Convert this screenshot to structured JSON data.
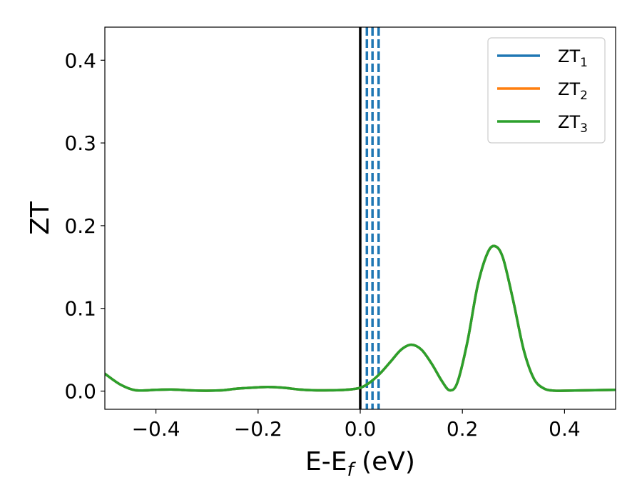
{
  "chart_data": {
    "type": "line",
    "title": "",
    "xlabel": "E-E",
    "xlabel_subscript": "f",
    "xlabel_unit": " (eV)",
    "ylabel": "ZT",
    "xlim": [
      -0.5,
      0.5
    ],
    "ylim": [
      -0.022,
      0.44
    ],
    "x_ticks": [
      -0.4,
      -0.2,
      0.0,
      0.2,
      0.4
    ],
    "x_tick_labels": [
      "−0.4",
      "−0.2",
      "0.0",
      "0.2",
      "0.4"
    ],
    "y_ticks": [
      0.0,
      0.1,
      0.2,
      0.3,
      0.4
    ],
    "y_tick_labels": [
      "0.0",
      "0.1",
      "0.2",
      "0.3",
      "0.4"
    ],
    "grid": false,
    "legend_position": "top-right",
    "series": [
      {
        "name": "ZT",
        "name_subscript": "1",
        "color": "#1f77b4",
        "x": [
          -0.5,
          -0.47,
          -0.44,
          -0.4,
          -0.37,
          -0.33,
          -0.3,
          -0.27,
          -0.24,
          -0.2,
          -0.18,
          -0.15,
          -0.12,
          -0.09,
          -0.06,
          -0.03,
          0.0,
          0.02,
          0.04,
          0.06,
          0.08,
          0.1,
          0.12,
          0.14,
          0.16,
          0.175,
          0.19,
          0.21,
          0.23,
          0.25,
          0.265,
          0.28,
          0.3,
          0.32,
          0.34,
          0.36,
          0.38,
          0.4,
          0.45,
          0.5
        ],
        "values": [
          0.021,
          0.008,
          0.001,
          0.0015,
          0.002,
          0.0008,
          0.0005,
          0.001,
          0.003,
          0.0045,
          0.005,
          0.004,
          0.002,
          0.001,
          0.001,
          0.0015,
          0.004,
          0.011,
          0.022,
          0.036,
          0.05,
          0.056,
          0.05,
          0.033,
          0.012,
          0.001,
          0.01,
          0.06,
          0.128,
          0.168,
          0.175,
          0.16,
          0.108,
          0.05,
          0.015,
          0.003,
          0.0005,
          0.0005,
          0.001,
          0.0015
        ]
      },
      {
        "name": "ZT",
        "name_subscript": "2",
        "color": "#ff7f0e",
        "x": [
          -0.5,
          -0.47,
          -0.44,
          -0.4,
          -0.37,
          -0.33,
          -0.3,
          -0.27,
          -0.24,
          -0.2,
          -0.18,
          -0.15,
          -0.12,
          -0.09,
          -0.06,
          -0.03,
          0.0,
          0.02,
          0.04,
          0.06,
          0.08,
          0.1,
          0.12,
          0.14,
          0.16,
          0.175,
          0.19,
          0.21,
          0.23,
          0.25,
          0.265,
          0.28,
          0.3,
          0.32,
          0.34,
          0.36,
          0.38,
          0.4,
          0.45,
          0.5
        ],
        "values": [
          0.021,
          0.008,
          0.001,
          0.0015,
          0.002,
          0.0008,
          0.0005,
          0.001,
          0.003,
          0.0045,
          0.005,
          0.004,
          0.002,
          0.001,
          0.001,
          0.0015,
          0.004,
          0.011,
          0.022,
          0.036,
          0.05,
          0.056,
          0.05,
          0.033,
          0.012,
          0.001,
          0.01,
          0.06,
          0.128,
          0.168,
          0.175,
          0.16,
          0.108,
          0.05,
          0.015,
          0.003,
          0.0005,
          0.0005,
          0.001,
          0.0015
        ]
      },
      {
        "name": "ZT",
        "name_subscript": "3",
        "color": "#2ca02c",
        "x": [
          -0.5,
          -0.47,
          -0.44,
          -0.4,
          -0.37,
          -0.33,
          -0.3,
          -0.27,
          -0.24,
          -0.2,
          -0.18,
          -0.15,
          -0.12,
          -0.09,
          -0.06,
          -0.03,
          0.0,
          0.02,
          0.04,
          0.06,
          0.08,
          0.1,
          0.12,
          0.14,
          0.16,
          0.175,
          0.19,
          0.21,
          0.23,
          0.25,
          0.265,
          0.28,
          0.3,
          0.32,
          0.34,
          0.36,
          0.38,
          0.4,
          0.45,
          0.5
        ],
        "values": [
          0.021,
          0.008,
          0.001,
          0.0015,
          0.002,
          0.0008,
          0.0005,
          0.001,
          0.003,
          0.0045,
          0.005,
          0.004,
          0.002,
          0.001,
          0.001,
          0.0015,
          0.004,
          0.011,
          0.022,
          0.036,
          0.05,
          0.056,
          0.05,
          0.033,
          0.012,
          0.001,
          0.01,
          0.06,
          0.128,
          0.168,
          0.175,
          0.16,
          0.108,
          0.05,
          0.015,
          0.003,
          0.0005,
          0.0005,
          0.001,
          0.0015
        ]
      }
    ],
    "vertical_lines": [
      {
        "x": 0.0,
        "color": "#000000",
        "style": "solid"
      },
      {
        "x": 0.013,
        "color": "#1f77b4",
        "style": "dashed"
      },
      {
        "x": 0.024,
        "color": "#1f77b4",
        "style": "dashed"
      },
      {
        "x": 0.036,
        "color": "#1f77b4",
        "style": "dashed"
      }
    ]
  }
}
